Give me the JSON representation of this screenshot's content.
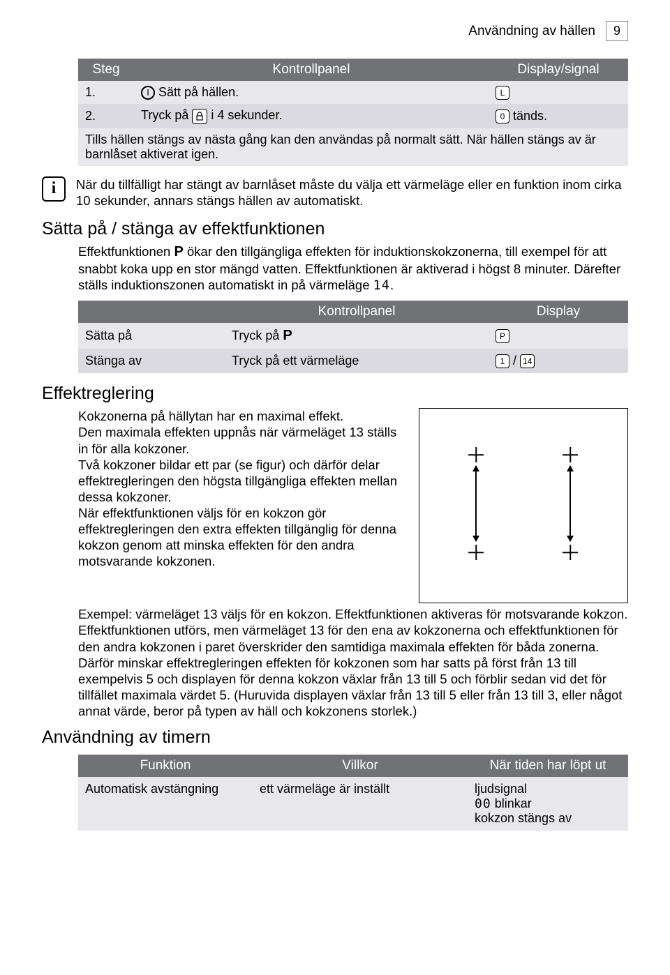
{
  "header": {
    "title": "Användning av hällen",
    "page_num": "9"
  },
  "table1": {
    "headers": [
      "Steg",
      "Kontrollpanel",
      "Display/signal"
    ],
    "rows": [
      {
        "step": "1.",
        "action_pre": "",
        "action_text": "Sätt på hällen.",
        "signal": "L"
      },
      {
        "step": "2.",
        "action_pre": "Tryck på",
        "action_post": "i 4 sekunder.",
        "signal_pre": "0",
        "signal_post": "tänds."
      }
    ],
    "note": "Tills hällen stängs av nästa gång kan den användas på normalt sätt. När hällen stängs av är barnlåset aktiverat igen."
  },
  "info1": "När du tillfälligt har stängt av barnlåset måste du välja ett värmeläge eller en funktion inom cirka 10 sekunder, annars stängs hällen av automatiskt.",
  "section1": {
    "title": "Sätta på / stänga av effektfunktionen",
    "body1a": "Effektfunktionen",
    "body1b": "ökar den tillgängliga effekten för induktionskokzonerna, till exempel för att snabbt koka upp en stor mängd vatten. Effektfunktionen är aktiverad i högst 8 minuter. Därefter ställs induktionszonen automatiskt in på värmeläge",
    "body1c": "."
  },
  "table2": {
    "headers": [
      "",
      "Kontrollpanel",
      "Display"
    ],
    "rows": [
      {
        "label": "Sätta på",
        "action": "Tryck på",
        "display": "P"
      },
      {
        "label": "Stänga av",
        "action": "Tryck på ett värmeläge",
        "display1": "1",
        "display2": "14"
      }
    ]
  },
  "section2": {
    "title": "Effektreglering",
    "left_text": "Kokzonerna på hällytan har en maximal effekt.\nDen maximala effekten uppnås när värmeläget 13 ställs in för alla kokzoner.\nTvå kokzoner bildar ett par (se figur) och därför delar effektregleringen den högsta tillgängliga effekten mellan dessa kokzoner.\nNär effektfunktionen väljs för en kokzon gör effektregleringen den extra effekten tillgänglig för denna kokzon genom att minska effekten för den andra motsvarande kokzonen.",
    "full_text": "Exempel: värmeläget 13 väljs för en kokzon. Effektfunktionen aktiveras för motsvarande kokzon. Effektfunktionen utförs, men värmeläget 13 för den ena av kokzonerna och effektfunktionen för den andra kokzonen i paret överskrider den samtidiga maximala effekten för båda zonerna. Därför minskar effektregleringen effekten för kokzonen som har satts på först från 13 till exempelvis 5 och displayen för denna kokzon växlar från 13 till 5 och förblir sedan vid det för tillfället maximala värdet 5. (Huruvida displayen växlar från 13 till 5 eller från 13 till 3, eller något annat värde, beror på typen av häll och kokzonens storlek.)"
  },
  "section3": {
    "title": "Användning av timern",
    "headers": [
      "Funktion",
      "Villkor",
      "När tiden har löpt ut"
    ],
    "row": {
      "c1": "Automatisk avstängning",
      "c2": "ett värmeläge är inställt",
      "c3a": "ljudsignal",
      "c3b": "blinkar",
      "c3c": "kokzon stängs av",
      "c3_icon": "00"
    }
  },
  "icons": {
    "power": "I",
    "seg14": "14"
  }
}
